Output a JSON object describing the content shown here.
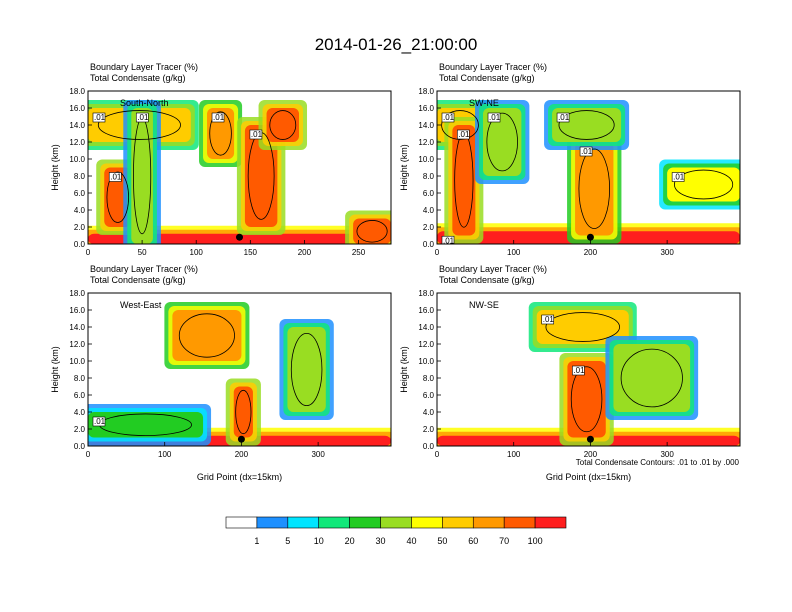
{
  "page_title": "2014-01-26_21:00:00",
  "colors": {
    "levels": [
      "#ffffff",
      "#1e90ff",
      "#00e5ff",
      "#11e87a",
      "#22cc22",
      "#99dd22",
      "#ffff00",
      "#ffcc00",
      "#ff9900",
      "#ff5a00",
      "#ff1e1e"
    ],
    "contour": "#000000"
  },
  "chart_data": [
    {
      "type": "heatmap",
      "panel": "South-North",
      "top_label_1": "Boundary Layer Tracer   (%)",
      "top_label_2": "Total Condensate   (g/kg)",
      "ylabel": "Height (km)",
      "xlabel": "",
      "xlim": [
        0,
        280
      ],
      "ylim": [
        0,
        18
      ],
      "xticks": [
        "0",
        "50",
        "100",
        "150",
        "200",
        "250"
      ],
      "yticks": [
        "0.0",
        "2.0",
        "4.0",
        "6.0",
        "8.0",
        "10.0",
        "12.0",
        "14.0",
        "16.0",
        "18.0"
      ],
      "marker_x": 140,
      "contour_labels": [
        ".01",
        ".01",
        ".01",
        ".01",
        ".01"
      ],
      "features": [
        {
          "x": [
            0,
            280
          ],
          "y": [
            0,
            1.2
          ],
          "v": 100
        },
        {
          "x": [
            0,
            95
          ],
          "y": [
            12,
            16
          ],
          "v": 50
        },
        {
          "x": [
            15,
            40
          ],
          "y": [
            2,
            9
          ],
          "v": 80
        },
        {
          "x": [
            40,
            60
          ],
          "y": [
            0,
            16
          ],
          "v": 30
        },
        {
          "x": [
            110,
            135
          ],
          "y": [
            10,
            16
          ],
          "v": 60
        },
        {
          "x": [
            145,
            175
          ],
          "y": [
            2,
            14
          ],
          "v": 70
        },
        {
          "x": [
            165,
            195
          ],
          "y": [
            12,
            16
          ],
          "v": 80
        },
        {
          "x": [
            245,
            280
          ],
          "y": [
            0,
            3
          ],
          "v": 80
        }
      ]
    },
    {
      "type": "heatmap",
      "panel": "SW-NE",
      "top_label_1": "Boundary Layer Tracer   (%)",
      "top_label_2": "Total Condensate   (g/kg)",
      "ylabel": "Height (km)",
      "xlabel": "",
      "xlim": [
        0,
        395
      ],
      "ylim": [
        0,
        18
      ],
      "xticks": [
        "0",
        "100",
        "200",
        "300"
      ],
      "yticks": [
        "0.0",
        "2.0",
        "4.0",
        "6.0",
        "8.0",
        "10.0",
        "12.0",
        "14.0",
        "16.0",
        "18.0"
      ],
      "marker_x": 200,
      "contour_labels": [
        ".01",
        ".01",
        ".01",
        ".01",
        ".01",
        ".01",
        ".01"
      ],
      "features": [
        {
          "x": [
            0,
            395
          ],
          "y": [
            0,
            1.5
          ],
          "v": 100
        },
        {
          "x": [
            0,
            60
          ],
          "y": [
            12,
            16
          ],
          "v": 50
        },
        {
          "x": [
            20,
            50
          ],
          "y": [
            1,
            14
          ],
          "v": 70
        },
        {
          "x": [
            60,
            110
          ],
          "y": [
            8,
            16
          ],
          "v": 30
        },
        {
          "x": [
            180,
            230
          ],
          "y": [
            1,
            12
          ],
          "v": 60
        },
        {
          "x": [
            150,
            240
          ],
          "y": [
            12,
            16
          ],
          "v": 30
        },
        {
          "x": [
            300,
            395
          ],
          "y": [
            5,
            9
          ],
          "v": 40
        }
      ]
    },
    {
      "type": "heatmap",
      "panel": "West-East",
      "top_label_1": "Boundary Layer Tracer   (%)",
      "top_label_2": "Total Condensate   (g/kg)",
      "ylabel": "Height (km)",
      "xlabel": "Grid Point (dx=15km)",
      "xlim": [
        0,
        395
      ],
      "ylim": [
        0,
        18
      ],
      "xticks": [
        "0",
        "100",
        "200",
        "300"
      ],
      "yticks": [
        "0.0",
        "2.0",
        "4.0",
        "6.0",
        "8.0",
        "10.0",
        "12.0",
        "14.0",
        "16.0",
        "18.0"
      ],
      "marker_x": 200,
      "contour_labels": [
        ".01"
      ],
      "features": [
        {
          "x": [
            0,
            395
          ],
          "y": [
            0,
            1.2
          ],
          "v": 100
        },
        {
          "x": [
            0,
            150
          ],
          "y": [
            1,
            4
          ],
          "v": 20
        },
        {
          "x": [
            110,
            200
          ],
          "y": [
            10,
            16
          ],
          "v": 60
        },
        {
          "x": [
            190,
            215
          ],
          "y": [
            1,
            7
          ],
          "v": 70
        },
        {
          "x": [
            260,
            310
          ],
          "y": [
            4,
            14
          ],
          "v": 30
        }
      ]
    },
    {
      "type": "heatmap",
      "panel": "NW-SE",
      "top_label_1": "Boundary Layer Tracer   (%)",
      "top_label_2": "Total Condensate   (g/kg)",
      "ylabel": "Height (km)",
      "xlabel": "Grid Point (dx=15km)",
      "xlim": [
        0,
        395
      ],
      "ylim": [
        0,
        18
      ],
      "xticks": [
        "0",
        "100",
        "200",
        "300"
      ],
      "yticks": [
        "0.0",
        "2.0",
        "4.0",
        "6.0",
        "8.0",
        "10.0",
        "12.0",
        "14.0",
        "16.0",
        "18.0"
      ],
      "marker_x": 200,
      "contour_labels": [
        ".01",
        ".01"
      ],
      "footnote": "Total Condensate Contours: .01 to .01 by .000",
      "features": [
        {
          "x": [
            0,
            395
          ],
          "y": [
            0,
            1.2
          ],
          "v": 100
        },
        {
          "x": [
            130,
            250
          ],
          "y": [
            12,
            16
          ],
          "v": 50
        },
        {
          "x": [
            170,
            220
          ],
          "y": [
            1,
            10
          ],
          "v": 70
        },
        {
          "x": [
            230,
            330
          ],
          "y": [
            4,
            12
          ],
          "v": 30
        }
      ]
    }
  ],
  "colorbar": {
    "labels": [
      "1",
      "5",
      "10",
      "20",
      "30",
      "40",
      "50",
      "60",
      "70",
      "100"
    ]
  }
}
